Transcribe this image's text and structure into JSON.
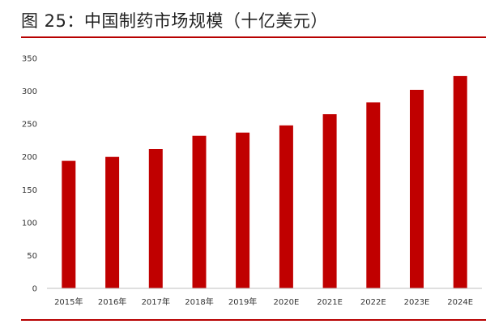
{
  "figure": {
    "title": "图 25：中国制药市场规模（十亿美元）"
  },
  "colors": {
    "bar": "#c00000",
    "rule": "#b70000",
    "axis": "#bfbfbf"
  },
  "chart_data": {
    "type": "bar",
    "title": "",
    "xlabel": "",
    "ylabel": "",
    "categories": [
      "2015年",
      "2016年",
      "2017年",
      "2018年",
      "2019年",
      "2020E",
      "2021E",
      "2022E",
      "2023E",
      "2024E"
    ],
    "values": [
      194,
      200,
      212,
      232,
      237,
      248,
      265,
      283,
      302,
      323
    ],
    "ylim": [
      0,
      350
    ],
    "yticks": [
      0,
      50,
      100,
      150,
      200,
      250,
      300,
      350
    ],
    "grid": false,
    "legend": "none"
  }
}
